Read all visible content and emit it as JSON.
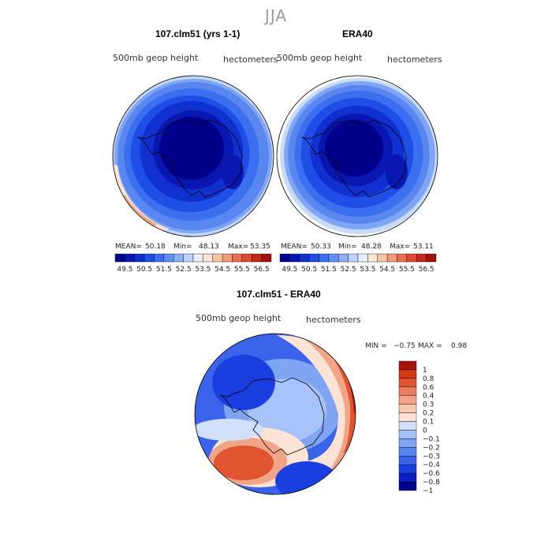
{
  "figure": {
    "title": "JJA"
  },
  "panels": [
    {
      "title": "107.clm51 (yrs 1-1)",
      "left_label": "500mb  geop  height",
      "right_label": "hectometers",
      "stats": {
        "mean_label": "MEAN=",
        "mean": "50.18",
        "min_label": "Min=",
        "min": "48.13",
        "max_label": "Max=",
        "max": "53.35"
      }
    },
    {
      "title": "ERA40",
      "left_label": "500mb  geop  height",
      "right_label": "hectometers",
      "stats": {
        "mean_label": "MEAN=",
        "mean": "50.33",
        "min_label": "Min=",
        "min": "48.28",
        "max_label": "Max=",
        "max": "53.11"
      }
    },
    {
      "title": "107.clm51 - ERA40",
      "left_label": "500mb  geop  height",
      "right_label": "hectometers",
      "stats": {
        "min_label": "MIN =",
        "min": "−0.75",
        "max_label": "MAX =",
        "max": "0.98"
      }
    }
  ],
  "chart_data": [
    {
      "type": "heatmap",
      "title": "107.clm51 (yrs 1-1)",
      "field": "500mb geop height",
      "units": "hectometers",
      "projection": "polar stereographic, south pole",
      "mean": 50.18,
      "min": 48.13,
      "max": 53.35,
      "contour_levels": [
        49.5,
        50,
        50.5,
        51,
        51.5,
        52,
        52.5,
        53,
        53.5,
        54,
        54.5,
        55,
        55.5,
        56,
        56.5
      ],
      "colorbar_tick_labels": [
        "49.5",
        "50.5",
        "51.5",
        "52.5",
        "53.5",
        "54.5",
        "55.5",
        "56.5"
      ],
      "colors": [
        "#00008b",
        "#0a16b0",
        "#1030d0",
        "#1e4ee6",
        "#3b6ff0",
        "#5f8ff5",
        "#8db2f8",
        "#bdd4fb",
        "#e8eefc",
        "#fde6d4",
        "#f9c3a4",
        "#f29b79",
        "#e9704f",
        "#dd4a30",
        "#c52a18",
        "#a0120c"
      ]
    },
    {
      "type": "heatmap",
      "title": "ERA40",
      "field": "500mb geop height",
      "units": "hectometers",
      "projection": "polar stereographic, south pole",
      "mean": 50.33,
      "min": 48.28,
      "max": 53.11,
      "contour_levels": [
        49.5,
        50,
        50.5,
        51,
        51.5,
        52,
        52.5,
        53,
        53.5,
        54,
        54.5,
        55,
        55.5,
        56,
        56.5
      ],
      "colorbar_tick_labels": [
        "49.5",
        "50.5",
        "51.5",
        "52.5",
        "53.5",
        "54.5",
        "55.5",
        "56.5"
      ],
      "colors": [
        "#00008b",
        "#0a16b0",
        "#1030d0",
        "#1e4ee6",
        "#3b6ff0",
        "#5f8ff5",
        "#8db2f8",
        "#bdd4fb",
        "#e8eefc",
        "#fde6d4",
        "#f9c3a4",
        "#f29b79",
        "#e9704f",
        "#dd4a30",
        "#c52a18",
        "#a0120c"
      ]
    },
    {
      "type": "heatmap",
      "title": "107.clm51 - ERA40",
      "field": "500mb geop height",
      "units": "hectometers",
      "projection": "polar stereographic, south pole",
      "min": -0.75,
      "max": 0.98,
      "contour_levels": [
        -1,
        -0.8,
        -0.6,
        -0.4,
        -0.3,
        -0.2,
        -0.1,
        0,
        0.1,
        0.2,
        0.3,
        0.4,
        0.6,
        0.8,
        1
      ],
      "colorbar_tick_labels": [
        "1",
        "0.8",
        "0.6",
        "0.4",
        "0.3",
        "0.2",
        "0.1",
        "0",
        "−0.1",
        "−0.2",
        "−0.3",
        "−0.4",
        "−0.6",
        "−0.8",
        "−1"
      ],
      "colors": [
        "#00008b",
        "#0a1fc0",
        "#1a3ee0",
        "#3a63ea",
        "#5a86f0",
        "#7fa4f4",
        "#a6c2f8",
        "#d2e1fb",
        "#fbe4d6",
        "#f7c7b0",
        "#f2a486",
        "#ea7d5d",
        "#e0552f",
        "#d33a12",
        "#a5150e"
      ]
    }
  ]
}
